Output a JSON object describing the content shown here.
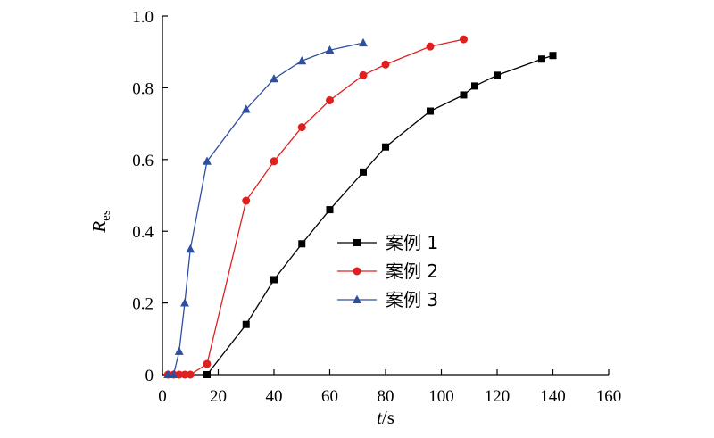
{
  "chart_data": {
    "type": "line",
    "xlabel": {
      "symbol": "t",
      "unit": "/s"
    },
    "ylabel": {
      "symbol": "R",
      "subscript": "es"
    },
    "xlim": [
      0,
      160
    ],
    "ylim": [
      0,
      1.0
    ],
    "xticks": [
      "0",
      "20",
      "40",
      "60",
      "80",
      "100",
      "120",
      "140",
      "160"
    ],
    "yticks": [
      "0",
      "0.2",
      "0.4",
      "0.6",
      "0.8",
      "1.0"
    ],
    "legend_position": "center-right",
    "grid": false,
    "series": [
      {
        "name": "案例 1",
        "color": "#000000",
        "marker": "square",
        "x": [
          16,
          30,
          40,
          50,
          60,
          72,
          80,
          96,
          108,
          112,
          120,
          136,
          140
        ],
        "y": [
          0.0,
          0.14,
          0.265,
          0.365,
          0.46,
          0.565,
          0.635,
          0.735,
          0.78,
          0.805,
          0.835,
          0.88,
          0.89
        ]
      },
      {
        "name": "案例 2",
        "color": "#e02020",
        "marker": "circle",
        "x": [
          2,
          4,
          6,
          8,
          10,
          16,
          30,
          40,
          50,
          60,
          72,
          80,
          96,
          108
        ],
        "y": [
          0.0,
          0.0,
          0.0,
          0.0,
          0.0,
          0.03,
          0.485,
          0.595,
          0.69,
          0.765,
          0.835,
          0.865,
          0.915,
          0.935
        ]
      },
      {
        "name": "案例 3",
        "color": "#2e4fa0",
        "marker": "triangle",
        "x": [
          2,
          4,
          6,
          8,
          10,
          16,
          30,
          40,
          50,
          60,
          72
        ],
        "y": [
          0.0,
          0.0,
          0.065,
          0.2,
          0.35,
          0.595,
          0.74,
          0.825,
          0.875,
          0.905,
          0.925
        ]
      }
    ]
  }
}
